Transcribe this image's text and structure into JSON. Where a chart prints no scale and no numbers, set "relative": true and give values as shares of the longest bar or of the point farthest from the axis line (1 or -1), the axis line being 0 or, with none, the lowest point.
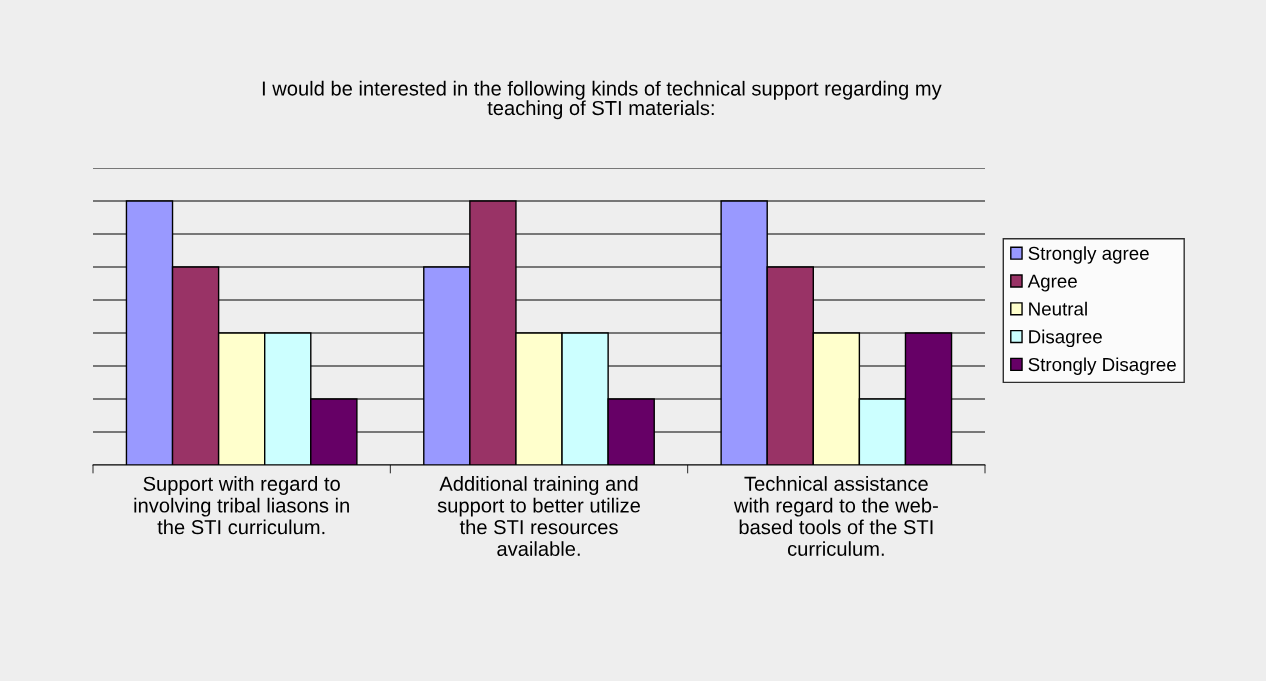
{
  "chart_data": {
    "type": "bar",
    "title": "I would be interested in the following kinds of technical support regarding my\nteaching of STI materials:",
    "categories": [
      "Support with regard to\ninvolving tribal liasons in\nthe STI curriculum.",
      "Additional training and\nsupport to better utilize\nthe STI resources\navailable.",
      "Technical assistance\nwith regard to the web-\nbased tools of the STI\ncurriculum."
    ],
    "relative": true,
    "grid": "y",
    "legend": "right",
    "series": [
      {
        "name": "Strongly agree",
        "color": "#9999ff",
        "values": [
          1,
          0.75,
          1
        ]
      },
      {
        "name": "Agree",
        "color": "#993366",
        "values": [
          0.75,
          1,
          0.75
        ]
      },
      {
        "name": "Neutral",
        "color": "#ffffcc",
        "values": [
          0.5,
          0.5,
          0.5
        ]
      },
      {
        "name": "Disagree",
        "color": "#ccffff",
        "values": [
          0.5,
          0.5,
          0.25
        ]
      },
      {
        "name": "Strongly Disagree",
        "color": "#660066",
        "values": [
          0.25,
          0.25,
          0.5
        ]
      }
    ]
  }
}
